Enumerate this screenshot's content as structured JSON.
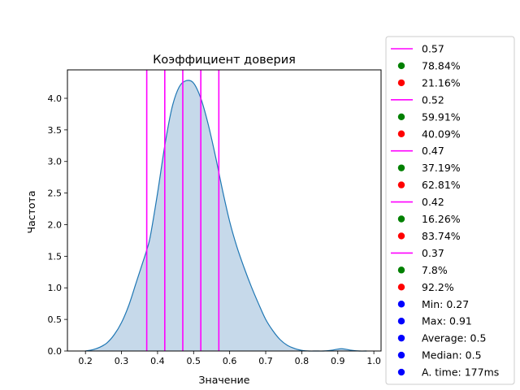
{
  "chart_data": {
    "type": "area",
    "title": "Коэффициент доверия",
    "xlabel": "Значение",
    "ylabel": "Частота",
    "xlim": [
      0.15,
      1.02
    ],
    "ylim": [
      0,
      4.45
    ],
    "xticks": [
      "0.2",
      "0.3",
      "0.4",
      "0.5",
      "0.6",
      "0.7",
      "0.8",
      "0.9",
      "1.0"
    ],
    "yticks": [
      "0.0",
      "0.5",
      "1.0",
      "1.5",
      "2.0",
      "2.5",
      "3.0",
      "3.5",
      "4.0"
    ],
    "grid": false,
    "legend_position": "outside-right",
    "density": {
      "x": [
        0.2,
        0.22,
        0.24,
        0.26,
        0.28,
        0.3,
        0.32,
        0.34,
        0.36,
        0.37,
        0.38,
        0.4,
        0.42,
        0.44,
        0.46,
        0.48,
        0.5,
        0.52,
        0.54,
        0.56,
        0.58,
        0.6,
        0.62,
        0.64,
        0.66,
        0.68,
        0.7,
        0.72,
        0.74,
        0.76,
        0.78,
        0.8,
        0.82,
        0.84,
        0.86,
        0.88,
        0.9,
        0.91,
        0.92,
        0.94,
        0.96,
        0.98
      ],
      "y": [
        0.0,
        0.02,
        0.06,
        0.13,
        0.26,
        0.45,
        0.72,
        1.07,
        1.42,
        1.6,
        1.82,
        2.5,
        3.25,
        3.85,
        4.18,
        4.28,
        4.24,
        4.0,
        3.6,
        3.1,
        2.55,
        2.05,
        1.65,
        1.32,
        1.02,
        0.75,
        0.5,
        0.32,
        0.18,
        0.09,
        0.04,
        0.01,
        0.0,
        0.0,
        0.0,
        0.01,
        0.03,
        0.035,
        0.03,
        0.01,
        0.0,
        0.0
      ],
      "fill_color": "#c6d9ea",
      "line_color": "#1f77b4"
    },
    "thresholds": [
      0.57,
      0.52,
      0.47,
      0.42,
      0.37
    ],
    "threshold_color": "#ff00ff",
    "legend": [
      {
        "marker": "line",
        "color": "#ff00ff",
        "label": "0.57"
      },
      {
        "marker": "dot",
        "color": "#008000",
        "label": "78.84%"
      },
      {
        "marker": "dot",
        "color": "#ff0000",
        "label": "21.16%"
      },
      {
        "marker": "line",
        "color": "#ff00ff",
        "label": "0.52"
      },
      {
        "marker": "dot",
        "color": "#008000",
        "label": "59.91%"
      },
      {
        "marker": "dot",
        "color": "#ff0000",
        "label": "40.09%"
      },
      {
        "marker": "line",
        "color": "#ff00ff",
        "label": "0.47"
      },
      {
        "marker": "dot",
        "color": "#008000",
        "label": "37.19%"
      },
      {
        "marker": "dot",
        "color": "#ff0000",
        "label": "62.81%"
      },
      {
        "marker": "line",
        "color": "#ff00ff",
        "label": "0.42"
      },
      {
        "marker": "dot",
        "color": "#008000",
        "label": "16.26%"
      },
      {
        "marker": "dot",
        "color": "#ff0000",
        "label": "83.74%"
      },
      {
        "marker": "line",
        "color": "#ff00ff",
        "label": "0.37"
      },
      {
        "marker": "dot",
        "color": "#008000",
        "label": "7.8%"
      },
      {
        "marker": "dot",
        "color": "#ff0000",
        "label": "92.2%"
      },
      {
        "marker": "dot",
        "color": "#0000ff",
        "label": "Min: 0.27"
      },
      {
        "marker": "dot",
        "color": "#0000ff",
        "label": "Max: 0.91"
      },
      {
        "marker": "dot",
        "color": "#0000ff",
        "label": "Average: 0.5"
      },
      {
        "marker": "dot",
        "color": "#0000ff",
        "label": "Median: 0.5"
      },
      {
        "marker": "dot",
        "color": "#0000ff",
        "label": "A. time: 177ms"
      }
    ]
  }
}
